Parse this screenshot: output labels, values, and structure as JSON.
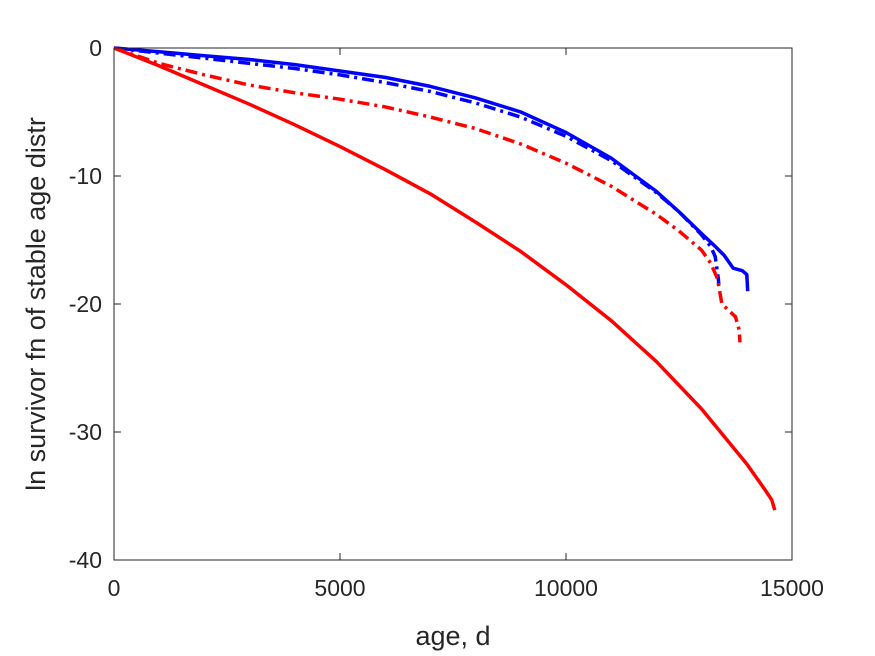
{
  "chart_data": {
    "type": "line",
    "title": "",
    "xlabel": "age, d",
    "ylabel": "ln survivor fn of stable age distr",
    "xlim": [
      0,
      15000
    ],
    "ylim": [
      -40,
      0
    ],
    "xticks": [
      0,
      5000,
      10000,
      15000
    ],
    "yticks": [
      0,
      -10,
      -20,
      -30,
      -40
    ],
    "xtick_labels": [
      "0",
      "5000",
      "10000",
      "15000"
    ],
    "ytick_labels": [
      "0",
      "-10",
      "-20",
      "-30",
      "-40"
    ],
    "grid": false,
    "series": [
      {
        "color": "#0000ff",
        "style": "solid",
        "points": [
          [
            0,
            0
          ],
          [
            1000,
            -0.3
          ],
          [
            2000,
            -0.6
          ],
          [
            3000,
            -0.9
          ],
          [
            4000,
            -1.3
          ],
          [
            5000,
            -1.8
          ],
          [
            6000,
            -2.3
          ],
          [
            7000,
            -3.0
          ],
          [
            8000,
            -3.9
          ],
          [
            9000,
            -5.0
          ],
          [
            10000,
            -6.6
          ],
          [
            11000,
            -8.6
          ],
          [
            12000,
            -11.2
          ],
          [
            12500,
            -12.8
          ],
          [
            13000,
            -14.5
          ],
          [
            13300,
            -15.5
          ],
          [
            13500,
            -16.2
          ],
          [
            13700,
            -17.2
          ],
          [
            13900,
            -17.4
          ],
          [
            14000,
            -17.7
          ],
          [
            14020,
            -19.0
          ]
        ]
      },
      {
        "color": "#0000ff",
        "style": "dashdot",
        "points": [
          [
            0,
            0
          ],
          [
            500,
            -0.2
          ],
          [
            1000,
            -0.4
          ],
          [
            2000,
            -0.8
          ],
          [
            3000,
            -1.2
          ],
          [
            4000,
            -1.6
          ],
          [
            5000,
            -2.1
          ],
          [
            6000,
            -2.7
          ],
          [
            7000,
            -3.4
          ],
          [
            8000,
            -4.3
          ],
          [
            9000,
            -5.4
          ],
          [
            10000,
            -6.9
          ],
          [
            11000,
            -8.8
          ],
          [
            12000,
            -11.3
          ],
          [
            12500,
            -12.8
          ],
          [
            13000,
            -14.6
          ],
          [
            13200,
            -15.5
          ],
          [
            13300,
            -16.3
          ],
          [
            13370,
            -18.0
          ],
          [
            13380,
            -18.5
          ]
        ]
      },
      {
        "color": "#ff0000",
        "style": "dashdot",
        "points": [
          [
            0,
            0
          ],
          [
            500,
            -0.6
          ],
          [
            1000,
            -1.2
          ],
          [
            2000,
            -2.1
          ],
          [
            3000,
            -2.9
          ],
          [
            4000,
            -3.5
          ],
          [
            5000,
            -4.0
          ],
          [
            6000,
            -4.6
          ],
          [
            7000,
            -5.4
          ],
          [
            8000,
            -6.3
          ],
          [
            9000,
            -7.5
          ],
          [
            10000,
            -9.0
          ],
          [
            11000,
            -10.8
          ],
          [
            12000,
            -13.0
          ],
          [
            12500,
            -14.3
          ],
          [
            13000,
            -15.8
          ],
          [
            13200,
            -16.8
          ],
          [
            13350,
            -18.0
          ],
          [
            13450,
            -20.0
          ],
          [
            13600,
            -20.5
          ],
          [
            13750,
            -21.0
          ],
          [
            13830,
            -22.0
          ],
          [
            13850,
            -23.0
          ]
        ]
      },
      {
        "color": "#ff0000",
        "style": "solid",
        "points": [
          [
            0,
            0
          ],
          [
            1000,
            -1.4
          ],
          [
            2000,
            -2.9
          ],
          [
            3000,
            -4.4
          ],
          [
            4000,
            -6.0
          ],
          [
            5000,
            -7.7
          ],
          [
            6000,
            -9.5
          ],
          [
            7000,
            -11.4
          ],
          [
            8000,
            -13.6
          ],
          [
            9000,
            -15.9
          ],
          [
            10000,
            -18.5
          ],
          [
            11000,
            -21.3
          ],
          [
            12000,
            -24.5
          ],
          [
            13000,
            -28.2
          ],
          [
            14000,
            -32.5
          ],
          [
            14400,
            -34.5
          ],
          [
            14550,
            -35.3
          ],
          [
            14620,
            -36.1
          ]
        ]
      }
    ]
  }
}
